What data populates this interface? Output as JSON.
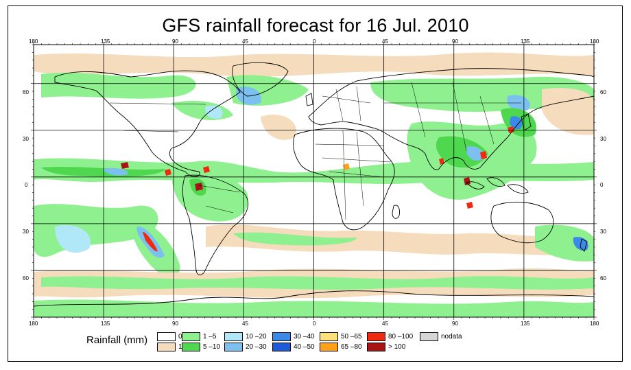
{
  "title": "GFS rainfall forecast for 16 Jul. 2010",
  "axes": {
    "top_ticks": [
      "180",
      "135",
      "90",
      "45",
      "0",
      "45",
      "90",
      "135",
      "180"
    ],
    "bottom_ticks": [
      "180",
      "135",
      "90",
      "45",
      "0",
      "45",
      "90",
      "135",
      "180"
    ],
    "left_ticks": [
      "60",
      "30",
      "0",
      "30",
      "60"
    ],
    "right_ticks": [
      "60",
      "30",
      "0",
      "30",
      "60"
    ]
  },
  "legend": {
    "title": "Rainfall (mm)",
    "entries": [
      {
        "label": "0",
        "color": "#ffffff"
      },
      {
        "label": "1",
        "color": "#f5dcbd"
      },
      {
        "label": "1 –5",
        "color": "#8ef08e"
      },
      {
        "label": "5 –10",
        "color": "#4fd84f"
      },
      {
        "label": "10 –20",
        "color": "#b0e8f8"
      },
      {
        "label": "20 –30",
        "color": "#7cc0f0"
      },
      {
        "label": "30 –40",
        "color": "#3a8ae8"
      },
      {
        "label": "40 –50",
        "color": "#1f5ad8"
      },
      {
        "label": "50 –65",
        "color": "#ffe07a"
      },
      {
        "label": "65 –80",
        "color": "#ffa21a"
      },
      {
        "label": "80 –100",
        "color": "#ee2a10"
      },
      {
        "label": "> 100",
        "color": "#a81414"
      },
      {
        "label": "nodata",
        "color": "#d6d6d6"
      }
    ]
  }
}
